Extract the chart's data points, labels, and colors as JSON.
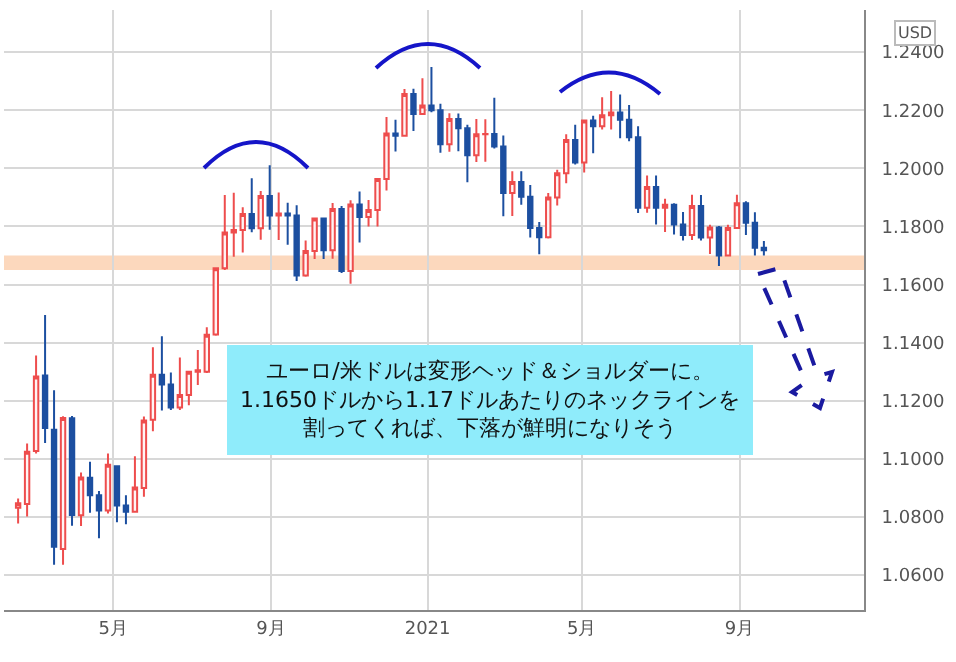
{
  "chart_data": {
    "type": "candlestick",
    "ylabel": "USD",
    "x": [
      "2020-02-17",
      "2020-02-24",
      "2020-03-02",
      "2020-03-09",
      "2020-03-16",
      "2020-03-23",
      "2020-03-30",
      "2020-04-06",
      "2020-04-13",
      "2020-04-20",
      "2020-04-27",
      "2020-05-04",
      "2020-05-11",
      "2020-05-18",
      "2020-05-25",
      "2020-06-01",
      "2020-06-08",
      "2020-06-15",
      "2020-06-22",
      "2020-06-29",
      "2020-07-06",
      "2020-07-13",
      "2020-07-20",
      "2020-07-27",
      "2020-08-03",
      "2020-08-10",
      "2020-08-17",
      "2020-08-24",
      "2020-08-31",
      "2020-09-07",
      "2020-09-14",
      "2020-09-21",
      "2020-09-28",
      "2020-10-05",
      "2020-10-12",
      "2020-10-19",
      "2020-10-26",
      "2020-11-02",
      "2020-11-09",
      "2020-11-16",
      "2020-11-23",
      "2020-11-30",
      "2020-12-07",
      "2020-12-14",
      "2020-12-21",
      "2020-12-28",
      "2021-01-04",
      "2021-01-11",
      "2021-01-18",
      "2021-01-25",
      "2021-02-01",
      "2021-02-08",
      "2021-02-15",
      "2021-02-22",
      "2021-03-01",
      "2021-03-08",
      "2021-03-15",
      "2021-03-22",
      "2021-03-29",
      "2021-04-05",
      "2021-04-12",
      "2021-04-19",
      "2021-04-26",
      "2021-05-03",
      "2021-05-10",
      "2021-05-17",
      "2021-05-24",
      "2021-05-31",
      "2021-06-07",
      "2021-06-14",
      "2021-06-21",
      "2021-06-28",
      "2021-07-05",
      "2021-07-12",
      "2021-07-19",
      "2021-07-26",
      "2021-08-02",
      "2021-08-09",
      "2021-08-16",
      "2021-08-23",
      "2021-08-30",
      "2021-09-06",
      "2021-09-13",
      "2021-09-20"
    ],
    "ohlc": [
      [
        1.0832,
        1.0864,
        1.0778,
        1.0847
      ],
      [
        1.0845,
        1.1053,
        1.0802,
        1.1025
      ],
      [
        1.1027,
        1.1356,
        1.1019,
        1.1284
      ],
      [
        1.1287,
        1.1495,
        1.1055,
        1.1106
      ],
      [
        1.11,
        1.1236,
        1.0636,
        1.0698
      ],
      [
        1.069,
        1.1147,
        1.0636,
        1.1141
      ],
      [
        1.114,
        1.1148,
        1.077,
        1.0807
      ],
      [
        1.0806,
        1.0953,
        1.0769,
        1.0936
      ],
      [
        1.0935,
        1.099,
        1.0815,
        1.0875
      ],
      [
        1.0875,
        1.089,
        1.0727,
        1.0822
      ],
      [
        1.0822,
        1.1019,
        1.0812,
        1.098
      ],
      [
        1.0975,
        1.0975,
        1.0782,
        1.084
      ],
      [
        1.084,
        1.0875,
        1.0775,
        1.0818
      ],
      [
        1.0818,
        1.1009,
        1.0815,
        1.0902
      ],
      [
        1.09,
        1.1146,
        1.087,
        1.1132
      ],
      [
        1.1135,
        1.1384,
        1.1095,
        1.129
      ],
      [
        1.129,
        1.1422,
        1.1167,
        1.1256
      ],
      [
        1.1256,
        1.1297,
        1.1168,
        1.1177
      ],
      [
        1.1177,
        1.1349,
        1.1168,
        1.122
      ],
      [
        1.122,
        1.1303,
        1.1185,
        1.13
      ],
      [
        1.13,
        1.1375,
        1.1254,
        1.1305
      ],
      [
        1.13,
        1.1453,
        1.1296,
        1.1427
      ],
      [
        1.1428,
        1.166,
        1.1424,
        1.1656
      ],
      [
        1.1656,
        1.1908,
        1.165,
        1.1779
      ],
      [
        1.1779,
        1.1916,
        1.1696,
        1.1788
      ],
      [
        1.1788,
        1.1866,
        1.171,
        1.1843
      ],
      [
        1.1843,
        1.1966,
        1.178,
        1.1794
      ],
      [
        1.1794,
        1.1922,
        1.1754,
        1.1905
      ],
      [
        1.1905,
        1.2011,
        1.1789,
        1.1838
      ],
      [
        1.1838,
        1.1917,
        1.1753,
        1.1845
      ],
      [
        1.1845,
        1.1882,
        1.1737,
        1.1838
      ],
      [
        1.1838,
        1.1873,
        1.1612,
        1.1631
      ],
      [
        1.1631,
        1.1752,
        1.1627,
        1.1716
      ],
      [
        1.1716,
        1.1831,
        1.1688,
        1.1827
      ],
      [
        1.1827,
        1.1831,
        1.1688,
        1.1718
      ],
      [
        1.1718,
        1.1881,
        1.1689,
        1.186
      ],
      [
        1.186,
        1.187,
        1.164,
        1.1647
      ],
      [
        1.1647,
        1.189,
        1.1603,
        1.1876
      ],
      [
        1.1876,
        1.192,
        1.1745,
        1.1833
      ],
      [
        1.1833,
        1.1891,
        1.18,
        1.1857
      ],
      [
        1.1857,
        1.1965,
        1.18,
        1.1963
      ],
      [
        1.1963,
        1.2177,
        1.1924,
        1.212
      ],
      [
        1.212,
        1.2167,
        1.2058,
        1.2112
      ],
      [
        1.2112,
        1.2273,
        1.2109,
        1.2256
      ],
      [
        1.2256,
        1.2274,
        1.2129,
        1.2187
      ],
      [
        1.2187,
        1.231,
        1.2187,
        1.2216
      ],
      [
        1.2216,
        1.2349,
        1.2193,
        1.22
      ],
      [
        1.22,
        1.2222,
        1.2054,
        1.2083
      ],
      [
        1.2083,
        1.219,
        1.2057,
        1.217
      ],
      [
        1.217,
        1.2189,
        1.2059,
        1.2138
      ],
      [
        1.2138,
        1.215,
        1.1952,
        1.2045
      ],
      [
        1.2045,
        1.217,
        1.2022,
        1.2117
      ],
      [
        1.2117,
        1.2169,
        1.2023,
        1.2118
      ],
      [
        1.2118,
        1.2243,
        1.2068,
        1.2075
      ],
      [
        1.2075,
        1.2113,
        1.1835,
        1.1915
      ],
      [
        1.1915,
        1.199,
        1.1836,
        1.1953
      ],
      [
        1.1953,
        1.199,
        1.1875,
        1.1902
      ],
      [
        1.1902,
        1.1943,
        1.1762,
        1.1795
      ],
      [
        1.1795,
        1.1815,
        1.1704,
        1.1763
      ],
      [
        1.1763,
        1.1915,
        1.1759,
        1.19
      ],
      [
        1.19,
        1.1995,
        1.1872,
        1.1983
      ],
      [
        1.1983,
        1.2117,
        1.1949,
        1.2098
      ],
      [
        1.2098,
        1.215,
        1.2013,
        1.202
      ],
      [
        1.202,
        1.2167,
        1.1986,
        1.2165
      ],
      [
        1.2165,
        1.2181,
        1.2052,
        1.2145
      ],
      [
        1.2145,
        1.2245,
        1.2134,
        1.2183
      ],
      [
        1.2183,
        1.2266,
        1.2134,
        1.2192
      ],
      [
        1.2192,
        1.2254,
        1.2104,
        1.2167
      ],
      [
        1.2167,
        1.2218,
        1.2093,
        1.2107
      ],
      [
        1.2107,
        1.2145,
        1.1846,
        1.1864
      ],
      [
        1.1864,
        1.1975,
        1.1847,
        1.1936
      ],
      [
        1.1936,
        1.1975,
        1.1807,
        1.1864
      ],
      [
        1.1864,
        1.1895,
        1.1781,
        1.1875
      ],
      [
        1.1875,
        1.188,
        1.1772,
        1.1807
      ],
      [
        1.1807,
        1.185,
        1.1752,
        1.1771
      ],
      [
        1.1771,
        1.1909,
        1.1753,
        1.187
      ],
      [
        1.187,
        1.1908,
        1.1752,
        1.1762
      ],
      [
        1.1762,
        1.1806,
        1.1705,
        1.1796
      ],
      [
        1.1796,
        1.1802,
        1.1664,
        1.17
      ],
      [
        1.17,
        1.1806,
        1.17,
        1.1795
      ],
      [
        1.1795,
        1.1909,
        1.1792,
        1.188
      ],
      [
        1.188,
        1.1887,
        1.1771,
        1.1813
      ],
      [
        1.1813,
        1.1849,
        1.17,
        1.1727
      ],
      [
        1.1727,
        1.175,
        1.17,
        1.1718
      ]
    ],
    "colors": [
      "#ee4d4d",
      "#ee4d4d",
      "#ee4d4d",
      "#1c4fa0",
      "#1c4fa0",
      "#ee4d4d",
      "#1c4fa0",
      "#ee4d4d",
      "#1c4fa0",
      "#1c4fa0",
      "#ee4d4d",
      "#1c4fa0",
      "#1c4fa0",
      "#ee4d4d",
      "#ee4d4d",
      "#ee4d4d",
      "#1c4fa0",
      "#1c4fa0",
      "#ee4d4d",
      "#ee4d4d",
      "#ee4d4d",
      "#ee4d4d",
      "#ee4d4d",
      "#ee4d4d",
      "#ee4d4d",
      "#ee4d4d",
      "#1c4fa0",
      "#ee4d4d",
      "#1c4fa0",
      "#ee4d4d",
      "#1c4fa0",
      "#1c4fa0",
      "#ee4d4d",
      "#ee4d4d",
      "#1c4fa0",
      "#ee4d4d",
      "#1c4fa0",
      "#ee4d4d",
      "#1c4fa0",
      "#ee4d4d",
      "#ee4d4d",
      "#ee4d4d",
      "#1c4fa0",
      "#ee4d4d",
      "#1c4fa0",
      "#ee4d4d",
      "#1c4fa0",
      "#1c4fa0",
      "#ee4d4d",
      "#1c4fa0",
      "#1c4fa0",
      "#ee4d4d",
      "#ee4d4d",
      "#1c4fa0",
      "#1c4fa0",
      "#ee4d4d",
      "#1c4fa0",
      "#1c4fa0",
      "#1c4fa0",
      "#ee4d4d",
      "#ee4d4d",
      "#ee4d4d",
      "#1c4fa0",
      "#ee4d4d",
      "#1c4fa0",
      "#ee4d4d",
      "#ee4d4d",
      "#1c4fa0",
      "#1c4fa0",
      "#1c4fa0",
      "#ee4d4d",
      "#1c4fa0",
      "#ee4d4d",
      "#1c4fa0",
      "#1c4fa0",
      "#ee4d4d",
      "#1c4fa0",
      "#ee4d4d",
      "#1c4fa0",
      "#ee4d4d",
      "#ee4d4d",
      "#1c4fa0",
      "#1c4fa0",
      "#1c4fa0"
    ],
    "xlim": [
      "2020-02-06",
      "2021-12-07"
    ],
    "xticks": [
      {
        "value": "2020-05-01",
        "label": "5月"
      },
      {
        "value": "2020-09-01",
        "label": "9月"
      },
      {
        "value": "2021-01-01",
        "label": "2021"
      },
      {
        "value": "2021-05-01",
        "label": "5月"
      },
      {
        "value": "2021-09-01",
        "label": "9月"
      }
    ],
    "ylim": [
      1.048,
      1.2545
    ],
    "yticks": [
      {
        "value": 1.06,
        "label": "1.0600"
      },
      {
        "value": 1.08,
        "label": "1.0800"
      },
      {
        "value": 1.1,
        "label": "1.1000"
      },
      {
        "value": 1.12,
        "label": "1.1200"
      },
      {
        "value": 1.14,
        "label": "1.1400"
      },
      {
        "value": 1.16,
        "label": "1.1600"
      },
      {
        "value": 1.18,
        "label": "1.1800"
      },
      {
        "value": 1.2,
        "label": "1.2000"
      },
      {
        "value": 1.22,
        "label": "1.2200"
      },
      {
        "value": 1.24,
        "label": "1.2400"
      }
    ],
    "grid": true,
    "bands": [
      {
        "axis": "y",
        "from": 1.165,
        "to": 1.17,
        "color": "#fcd8bd"
      }
    ],
    "annotations": [
      "ユーロ/米ドルは変形ヘッド＆ショルダーに。",
      "1.1650ドルから1.17ドルあたりのネックラインを",
      "割ってくれば、下落が鮮明になりそう"
    ]
  }
}
